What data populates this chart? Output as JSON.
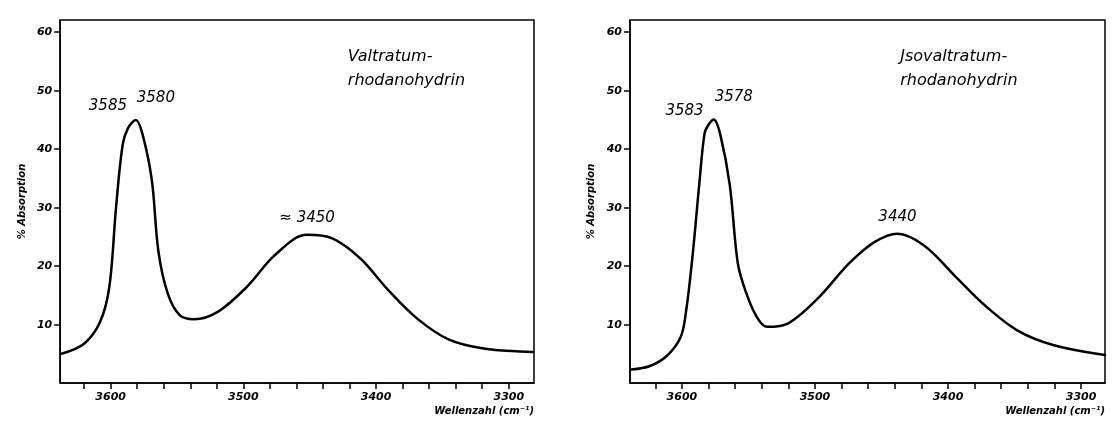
{
  "chart_data": [
    {
      "type": "line",
      "title": "Valtratum-\nrhodanohydrin",
      "xlabel": "Wellenzahl (cm⁻¹)",
      "ylabel": "% Absorption",
      "x": [
        3637,
        3620,
        3608,
        3601,
        3596,
        3591,
        3587,
        3581,
        3576,
        3569,
        3564,
        3557,
        3548,
        3537,
        3519,
        3497,
        3476,
        3452,
        3433,
        3412,
        3391,
        3369,
        3345,
        3319,
        3282
      ],
      "values": [
        5.0,
        6.7,
        10.4,
        16.4,
        29.8,
        40.6,
        43.5,
        44.9,
        42.5,
        34.7,
        22.5,
        15.3,
        11.6,
        10.9,
        12.2,
        16.5,
        21.9,
        25.3,
        24.7,
        21.3,
        15.9,
        11.0,
        7.4,
        5.9,
        5.3
      ],
      "color": "#000000",
      "xlim": [
        3638,
        3281
      ],
      "ylim": [
        0,
        62
      ],
      "xticks": [
        {
          "value": 3620,
          "label": null
        },
        3600,
        {
          "value": 3580,
          "label": null
        },
        {
          "value": 3560,
          "label": null
        },
        {
          "value": 3540,
          "label": null
        },
        {
          "value": 3520,
          "label": null
        },
        3500,
        {
          "value": 3480,
          "label": null
        },
        {
          "value": 3460,
          "label": null
        },
        {
          "value": 3440,
          "label": null
        },
        {
          "value": 3420,
          "label": null
        },
        3400,
        {
          "value": 3380,
          "label": null
        },
        {
          "value": 3360,
          "label": null
        },
        {
          "value": 3340,
          "label": null
        },
        {
          "value": 3320,
          "label": null
        },
        3300
      ],
      "yticks": [
        10,
        20,
        30,
        40,
        50,
        60
      ],
      "annotations": [
        {
          "text": "3585",
          "x": 3587,
          "y": 43.5
        },
        {
          "text": "3580",
          "x": 3581,
          "y": 44.9
        },
        {
          "text": "≈ 3450",
          "x": 3452,
          "y": 25.3
        }
      ]
    },
    {
      "type": "line",
      "title": "Jsovaltratum-\nrhodanohydrin",
      "xlabel": "Wellenzahl (cm⁻¹)",
      "ylabel": "% Absorption",
      "x": [
        3638,
        3624,
        3611,
        3601,
        3597,
        3592,
        3587,
        3583,
        3580,
        3576,
        3571,
        3564,
        3558,
        3552,
        3544,
        3536,
        3520,
        3498,
        3474,
        3455,
        3438,
        3418,
        3394,
        3372,
        3348,
        3321,
        3282
      ],
      "values": [
        2.3,
        2.9,
        4.7,
        7.8,
        12.0,
        21.7,
        33.8,
        42.6,
        44.1,
        45.0,
        42.3,
        33.8,
        20.5,
        15.6,
        11.4,
        9.6,
        10.2,
        14.4,
        20.5,
        24.1,
        25.5,
        23.5,
        18.1,
        13.2,
        9.0,
        6.5,
        4.8
      ],
      "color": "#000000",
      "xlim": [
        3639,
        3282
      ],
      "ylim": [
        0,
        62
      ],
      "xticks": [
        {
          "value": 3620,
          "label": null
        },
        3600,
        {
          "value": 3580,
          "label": null
        },
        {
          "value": 3560,
          "label": null
        },
        {
          "value": 3540,
          "label": null
        },
        {
          "value": 3520,
          "label": null
        },
        3500,
        {
          "value": 3480,
          "label": null
        },
        {
          "value": 3460,
          "label": null
        },
        {
          "value": 3440,
          "label": null
        },
        {
          "value": 3420,
          "label": null
        },
        3400,
        {
          "value": 3380,
          "label": null
        },
        {
          "value": 3360,
          "label": null
        },
        {
          "value": 3340,
          "label": null
        },
        {
          "value": 3320,
          "label": null
        },
        3300
      ],
      "yticks": [
        10,
        20,
        30,
        40,
        50,
        60
      ],
      "annotations": [
        {
          "text": "3583",
          "x": 3583,
          "y": 42.6
        },
        {
          "text": "3578",
          "x": 3576,
          "y": 45.0
        },
        {
          "text": "3440",
          "x": 3438,
          "y": 25.5
        }
      ]
    }
  ]
}
